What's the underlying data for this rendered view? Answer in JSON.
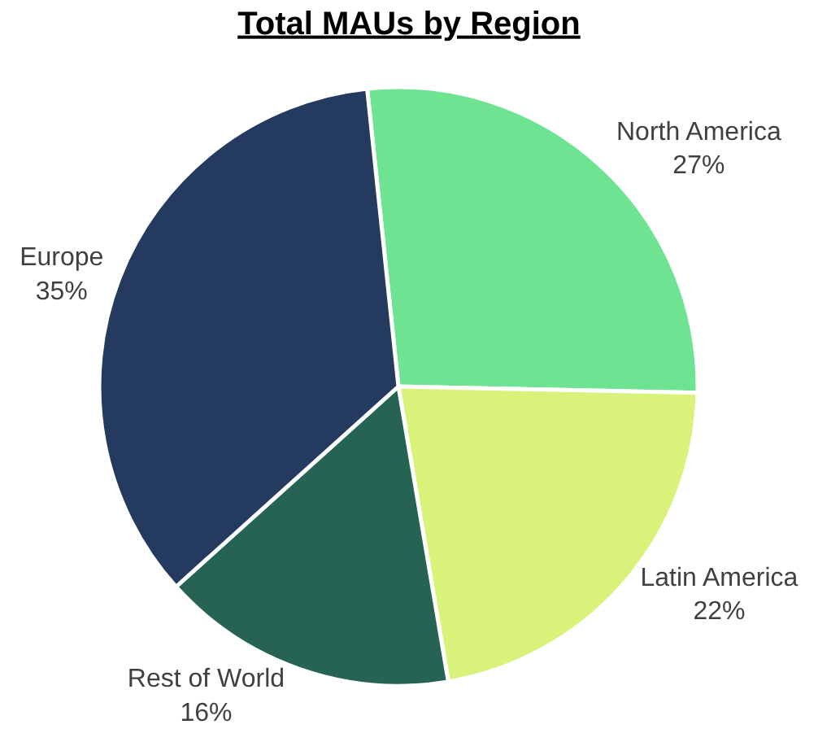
{
  "chart_data": {
    "type": "pie",
    "title": "Total MAUs by Region",
    "categories": [
      "North America",
      "Latin America",
      "Rest of World",
      "Europe"
    ],
    "values": [
      27,
      22,
      16,
      35
    ],
    "value_labels": [
      "27%",
      "22%",
      "16%",
      "35%"
    ],
    "colors": [
      "#6ee391",
      "#d8f27a",
      "#276352",
      "#243a5e"
    ],
    "legend": false
  }
}
